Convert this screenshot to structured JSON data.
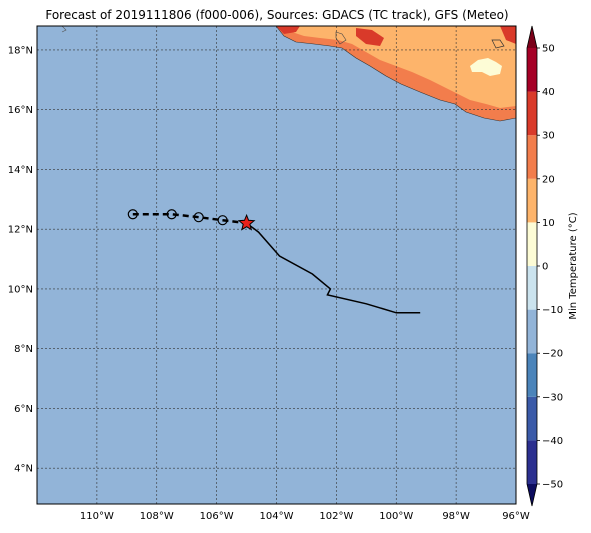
{
  "title": "Forecast of 2019111806 (f000-006), Sources: GDACS (TC track), GFS (Meteo)",
  "map": {
    "lon_range": [
      -112,
      -96
    ],
    "lat_range": [
      2.8,
      18.8
    ],
    "x_ticks": [
      {
        "value": -110,
        "label": "110°W"
      },
      {
        "value": -108,
        "label": "108°W"
      },
      {
        "value": -106,
        "label": "106°W"
      },
      {
        "value": -104,
        "label": "104°W"
      },
      {
        "value": -102,
        "label": "102°W"
      },
      {
        "value": -100,
        "label": "100°W"
      },
      {
        "value": -98,
        "label": "98°W"
      },
      {
        "value": -96,
        "label": "96°W"
      }
    ],
    "y_ticks": [
      {
        "value": 4,
        "label": "4°N"
      },
      {
        "value": 6,
        "label": "6°N"
      },
      {
        "value": 8,
        "label": "8°N"
      },
      {
        "value": 10,
        "label": "10°N"
      },
      {
        "value": 12,
        "label": "12°N"
      },
      {
        "value": 14,
        "label": "14°N"
      },
      {
        "value": 16,
        "label": "16°N"
      },
      {
        "value": 18,
        "label": "18°N"
      }
    ],
    "ocean_color": "#92b4d8",
    "grid": true
  },
  "past_track": [
    [
      -99.2,
      9.2
    ],
    [
      -100.0,
      9.2
    ],
    [
      -101.0,
      9.5
    ],
    [
      -102.3,
      9.8
    ],
    [
      -102.2,
      10.0
    ],
    [
      -102.8,
      10.5
    ],
    [
      -103.9,
      11.1
    ],
    [
      -104.6,
      11.9
    ],
    [
      -105.0,
      12.2
    ]
  ],
  "forecast_track": [
    [
      -108.8,
      12.5
    ],
    [
      -107.5,
      12.5
    ],
    [
      -106.6,
      12.4
    ],
    [
      -105.8,
      12.3
    ],
    [
      -105.0,
      12.2
    ]
  ],
  "forecast_points": [
    [
      -108.8,
      12.5
    ],
    [
      -107.5,
      12.5
    ],
    [
      -106.6,
      12.4
    ],
    [
      -105.8,
      12.3
    ]
  ],
  "current_position": [
    -105.0,
    12.2
  ],
  "colorbar": {
    "label": "Min Temperature (°C)",
    "ticks": [
      {
        "value": 50,
        "label": "50"
      },
      {
        "value": 40,
        "label": "40"
      },
      {
        "value": 30,
        "label": "30"
      },
      {
        "value": 20,
        "label": "20"
      },
      {
        "value": 10,
        "label": "10"
      },
      {
        "value": 0,
        "label": "0"
      },
      {
        "value": -10,
        "label": "−10"
      },
      {
        "value": -20,
        "label": "−20"
      },
      {
        "value": -30,
        "label": "−30"
      },
      {
        "value": -40,
        "label": "−40"
      },
      {
        "value": -50,
        "label": "−50"
      }
    ],
    "range": [
      -50,
      50
    ],
    "bands": [
      {
        "from": -50,
        "to": -40,
        "color": "#2b2f8f"
      },
      {
        "from": -40,
        "to": -30,
        "color": "#3a5aa8"
      },
      {
        "from": -30,
        "to": -20,
        "color": "#4b84ba"
      },
      {
        "from": -20,
        "to": -10,
        "color": "#92b4d8"
      },
      {
        "from": -10,
        "to": 0,
        "color": "#cbe3ee"
      },
      {
        "from": 0,
        "to": 10,
        "color": "#fdfcd6"
      },
      {
        "from": 10,
        "to": 20,
        "color": "#fdb46b"
      },
      {
        "from": 20,
        "to": 30,
        "color": "#f27d4c"
      },
      {
        "from": 30,
        "to": 40,
        "color": "#d93a2a"
      },
      {
        "from": 40,
        "to": 50,
        "color": "#a50026"
      }
    ],
    "under_color": "#0c0c5e",
    "over_color": "#7a0019"
  },
  "land_colors": {
    "warm": "#fdb46b",
    "hot": "#f27d4c",
    "hotter": "#d93a2a",
    "mild": "#fdfcd6"
  }
}
